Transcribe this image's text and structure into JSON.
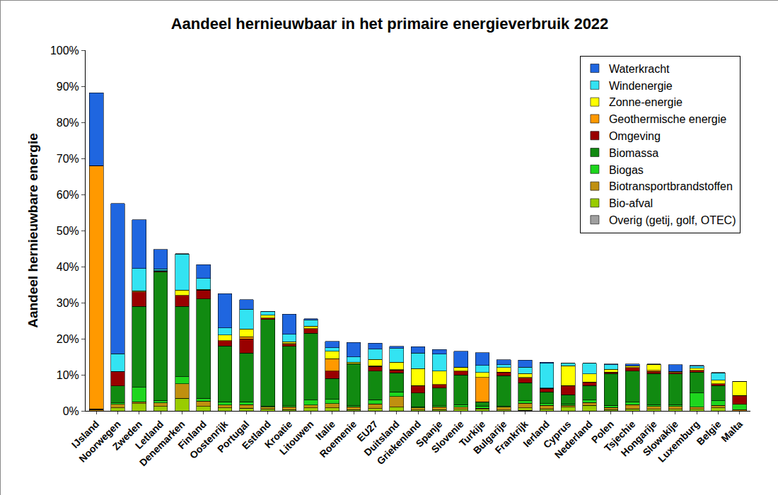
{
  "chart_data": {
    "type": "bar",
    "title": "Aandeel hernieuwbaar in het primaire energieverbruik 2022",
    "y_label": "Aandeel hernieuwbare energie",
    "stacked": true,
    "grid": false,
    "legend": "upper right",
    "categories": [
      "IJsland",
      "Noorwegen",
      "Zweden",
      "Letland",
      "Denemarken",
      "Finland",
      "Oostenrijk",
      "Portugal",
      "Estland",
      "Kroatie",
      "Litouwen",
      "Italie",
      "Roemenie",
      "EU27",
      "Duitsland",
      "Griekenland",
      "Spanje",
      "Slovenie",
      "Turkije",
      "Bulgarije",
      "Frankrijk",
      "Ierland",
      "Cyprus",
      "Nederland",
      "Polen",
      "Tsjechie",
      "Hongarije",
      "Slowakije",
      "Luxemburg",
      "Belgie",
      "Malta"
    ],
    "ylim": [
      0,
      100
    ],
    "yticks": [
      {
        "value": 0,
        "label": "0%"
      },
      {
        "value": 10,
        "label": "10%"
      },
      {
        "value": 20,
        "label": "20%"
      },
      {
        "value": 30,
        "label": "30%"
      },
      {
        "value": 40,
        "label": "40%"
      },
      {
        "value": 50,
        "label": "50%"
      },
      {
        "value": 60,
        "label": "60%"
      },
      {
        "value": 70,
        "label": "70%"
      },
      {
        "value": 80,
        "label": "80%"
      },
      {
        "value": 90,
        "label": "90%"
      },
      {
        "value": 100,
        "label": "100%"
      }
    ],
    "series": [
      {
        "name": "Waterkracht",
        "color": "#1f66e0",
        "values": [
          20.2,
          41.7,
          13.5,
          5.4,
          0.1,
          3.8,
          9.5,
          2.6,
          0.1,
          5.6,
          0.3,
          1.8,
          4.0,
          1.7,
          0.6,
          1.8,
          1.3,
          4.4,
          3.5,
          1.4,
          2.0,
          0.3,
          0,
          0,
          0.2,
          0.5,
          0.1,
          1.9,
          0.2,
          0.1,
          0
        ]
      },
      {
        "name": "Windenergie",
        "color": "#33e3f2",
        "values": [
          0,
          4.9,
          6.2,
          0.5,
          10.0,
          3.0,
          2.0,
          5.5,
          1.0,
          2.0,
          1.7,
          1.0,
          1.5,
          2.8,
          3.8,
          4.3,
          4.7,
          0.1,
          2.0,
          0.8,
          1.8,
          6.9,
          0.7,
          3.0,
          1.3,
          0.1,
          0.1,
          0,
          0.6,
          2.0,
          0
        ]
      },
      {
        "name": "Zonne-energie",
        "color": "#ffff00",
        "values": [
          0,
          0,
          0.3,
          0.1,
          1.5,
          0.2,
          1.5,
          2.2,
          0.8,
          0.5,
          0.7,
          2.0,
          0.4,
          1.8,
          2.1,
          4.7,
          3.7,
          1.0,
          1.3,
          1.3,
          1.0,
          0.1,
          5.5,
          2.2,
          0.8,
          0.4,
          1.6,
          0.3,
          0.6,
          1.0,
          3.9
        ]
      },
      {
        "name": "Geothermische energie",
        "color": "#ff9900",
        "values": [
          67.5,
          0,
          0,
          0,
          0,
          0,
          0,
          0.5,
          0,
          0.2,
          0,
          3.5,
          0,
          0.2,
          0.1,
          0,
          0,
          0,
          6.8,
          0,
          0.2,
          0,
          0,
          0,
          0,
          0,
          0.3,
          0,
          0,
          0,
          0
        ]
      },
      {
        "name": "Omgeving",
        "color": "#990000",
        "values": [
          0,
          4.0,
          4.0,
          0.3,
          3.0,
          2.5,
          1.5,
          4.0,
          0.4,
          0.6,
          1.3,
          2.0,
          0.1,
          1.3,
          0.8,
          2.0,
          1.0,
          1.0,
          0,
          0.9,
          1.3,
          1.0,
          2.5,
          1.0,
          0.4,
          1.0,
          0.6,
          0.4,
          0.5,
          0.5,
          2.5
        ]
      },
      {
        "name": "Biomassa",
        "color": "#118a11",
        "values": [
          0.2,
          4.7,
          22.5,
          35.6,
          19.5,
          27.5,
          15.5,
          13.5,
          24.0,
          16.5,
          18.5,
          5.8,
          11.5,
          7.9,
          5.3,
          3.9,
          4.9,
          8.3,
          1.2,
          8.5,
          5.0,
          3.2,
          2.6,
          4.0,
          8.8,
          8.6,
          8.6,
          8.5,
          5.7,
          4.2,
          0
        ]
      },
      {
        "name": "Biogas",
        "color": "#1ed61e",
        "values": [
          0,
          0.4,
          4.0,
          0.7,
          2.0,
          0.8,
          0.9,
          0.8,
          0.3,
          0.3,
          1.4,
          1.2,
          0.4,
          1.2,
          1.2,
          0.3,
          0.3,
          0.7,
          0.6,
          0.3,
          0.7,
          0.5,
          0.4,
          0.7,
          0.6,
          0.7,
          0.5,
          0.5,
          4.0,
          1.3,
          1.5
        ]
      },
      {
        "name": "Biotransportbrandstoffen",
        "color": "#c09010",
        "values": [
          0.3,
          1.0,
          0.5,
          1.0,
          4.0,
          1.5,
          0.8,
          1.0,
          0.5,
          0.8,
          0.8,
          1.2,
          0.8,
          1.3,
          3.0,
          0.6,
          0.8,
          0.6,
          0.3,
          0.8,
          1.3,
          1.0,
          0.5,
          0.8,
          0.6,
          1.2,
          0.8,
          0.8,
          0.6,
          0.7,
          0.3
        ]
      },
      {
        "name": "Bio-afval",
        "color": "#99cc00",
        "values": [
          0,
          0.8,
          2.0,
          1.2,
          3.5,
          1.2,
          0.8,
          0.7,
          0.5,
          0.3,
          0.8,
          0.8,
          0.3,
          0.6,
          1.0,
          0.2,
          0.3,
          0.4,
          0.4,
          0.2,
          0.7,
          0.5,
          1.0,
          1.5,
          0.3,
          0.5,
          0.4,
          0.4,
          0.4,
          0.8,
          0
        ]
      },
      {
        "name": "Overig (getij, golf, OTEC)",
        "color": "#a0a0a0",
        "values": [
          0,
          0,
          0,
          0,
          0,
          0,
          0,
          0,
          0,
          0,
          0,
          0,
          0,
          0,
          0,
          0,
          0,
          0,
          0,
          0,
          0.1,
          0,
          0,
          0,
          0,
          0,
          0,
          0,
          0,
          0,
          0
        ]
      }
    ]
  }
}
